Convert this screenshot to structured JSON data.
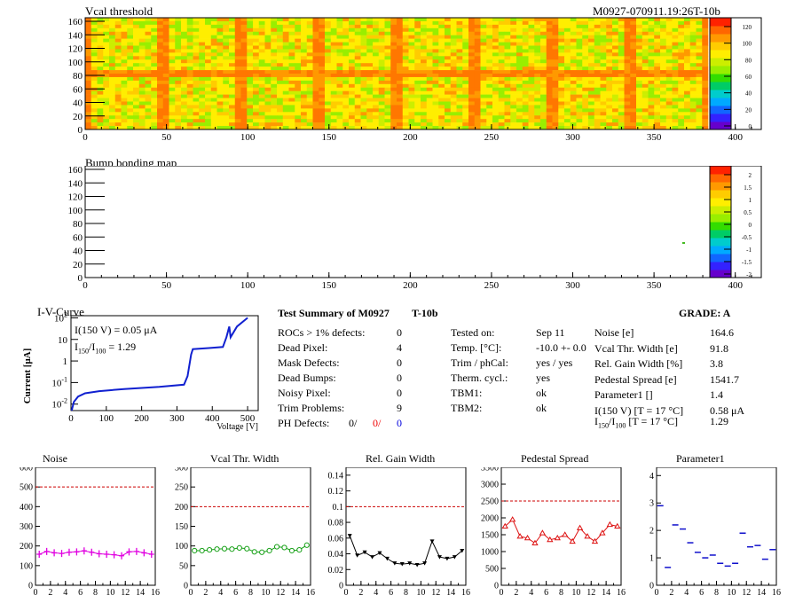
{
  "colors": {
    "noise": "#e000e0",
    "vcal_width": "#16a016",
    "gain_width": "#000000",
    "pedestal": "#dd1010",
    "parameter1": "#1010cc",
    "iv_curve": "#1020d0",
    "defect_red": "#ee0000",
    "defect_blue": "#0000dd",
    "threshold_line": "#cc0000"
  },
  "header": {
    "module_id": "M0927-070911.19:26T-10b"
  },
  "heatmaps": [
    {
      "title": "Vcal threshold",
      "x_ticks": [
        "0",
        "50",
        "100",
        "150",
        "200",
        "250",
        "300",
        "350",
        "400"
      ],
      "y_ticks": [
        "0",
        "20",
        "40",
        "60",
        "80",
        "100",
        "120",
        "140",
        "160"
      ],
      "palette_ticks": [
        "120",
        "100",
        "80",
        "60",
        "40",
        "20",
        "0"
      ]
    },
    {
      "title": "Bump bonding map",
      "x_ticks": [
        "0",
        "50",
        "100",
        "150",
        "200",
        "250",
        "300",
        "350",
        "400"
      ],
      "y_ticks": [
        "0",
        "20",
        "40",
        "60",
        "80",
        "100",
        "120",
        "140",
        "160"
      ],
      "palette_ticks": [
        "2",
        "1.5",
        "1",
        "0.5",
        "0",
        "-0.5",
        "-1",
        "-1.5",
        "-2"
      ]
    }
  ],
  "iv": {
    "title": "I-V-Curve",
    "ylabel": "Current [μA]",
    "xlabel": "Voltage [V]",
    "i150": "I(150 V) = 0.05 μA",
    "ratio_label": "I",
    "ratio_sub1": "150",
    "ratio_sep": "/I",
    "ratio_sub2": "100",
    "ratio_val": "=  1.29",
    "x_ticks": [
      "0",
      "100",
      "200",
      "300",
      "400",
      "500"
    ],
    "y_ticks": [
      {
        "base": "10",
        "exp": "-2"
      },
      {
        "base": "10",
        "exp": "-1"
      },
      {
        "base": "1",
        "exp": ""
      },
      {
        "base": "10",
        "exp": ""
      },
      {
        "base": "10",
        "exp": "2"
      }
    ]
  },
  "summary": {
    "title": "Test Summary of M0927",
    "subtitle": "T-10b",
    "grade": "GRADE:  A",
    "rows": [
      {
        "label": "ROCs > 1% defects:",
        "value": "0"
      },
      {
        "label": "Dead Pixel:",
        "value": "4"
      },
      {
        "label": "Mask Defects:",
        "value": "0"
      },
      {
        "label": "Dead Bumps:",
        "value": "0"
      },
      {
        "label": "Noisy Pixel:",
        "value": "0"
      },
      {
        "label": "Trim Problems:",
        "value": "9"
      }
    ],
    "ph_defects": {
      "label": "PH Defects:",
      "v1": "0/",
      "v2": "0/",
      "v3": "0"
    },
    "mid_rows": [
      {
        "label": "Tested on:",
        "value": "Sep 11"
      },
      {
        "label": "Temp. [°C]:",
        "value": "-10.0 +- 0.0"
      },
      {
        "label": "Trim / phCal:",
        "value": "yes / yes"
      },
      {
        "label": "Therm. cycl.:",
        "value": "yes"
      },
      {
        "label": "TBM1:",
        "value": "ok"
      },
      {
        "label": "TBM2:",
        "value": "ok"
      }
    ],
    "right_rows": [
      {
        "label": "Noise [e]",
        "value": "164.6"
      },
      {
        "label": "Vcal Thr. Width [e]",
        "value": "91.8"
      },
      {
        "label": "Rel. Gain Width [%]",
        "value": "3.8"
      },
      {
        "label": "Pedestal Spread [e]",
        "value": "1541.7"
      },
      {
        "label": "Parameter1 []",
        "value": "1.4"
      },
      {
        "label": "I(150 V) [T = 17 °C]",
        "value": "0.58 μA"
      }
    ],
    "ratio_row": {
      "label_pre": "I",
      "sub1": "150",
      "mid": "/I",
      "sub2": "100",
      "label_post": "  [T = 17 °C]",
      "value": "1.29"
    }
  },
  "chart_data": [
    {
      "type": "line",
      "title": "Noise",
      "x": [
        0,
        1,
        2,
        3,
        4,
        5,
        6,
        7,
        8,
        9,
        10,
        11,
        12,
        13,
        14,
        15
      ],
      "values": [
        158,
        172,
        165,
        162,
        168,
        170,
        175,
        168,
        160,
        158,
        155,
        150,
        170,
        172,
        165,
        158
      ],
      "ylim": [
        0,
        600
      ],
      "y_ticks": [
        "0",
        "100",
        "200",
        "300",
        "400",
        "500",
        "600"
      ],
      "threshold": 500,
      "marker": "cross",
      "xlim": [
        0,
        16
      ],
      "x_ticks": [
        "0",
        "2",
        "4",
        "6",
        "8",
        "10",
        "12",
        "14",
        "16"
      ]
    },
    {
      "type": "line",
      "title": "Vcal Thr. Width",
      "x": [
        0,
        1,
        2,
        3,
        4,
        5,
        6,
        7,
        8,
        9,
        10,
        11,
        12,
        13,
        14,
        15
      ],
      "values": [
        88,
        88,
        90,
        92,
        93,
        92,
        95,
        93,
        85,
        84,
        88,
        98,
        96,
        88,
        90,
        102
      ],
      "ylim": [
        0,
        300
      ],
      "y_ticks": [
        "0",
        "50",
        "100",
        "150",
        "200",
        "250",
        "300"
      ],
      "threshold": 200,
      "marker": "circle",
      "xlim": [
        0,
        16
      ],
      "x_ticks": [
        "0",
        "2",
        "4",
        "6",
        "8",
        "10",
        "12",
        "14",
        "16"
      ]
    },
    {
      "type": "line",
      "title": "Rel. Gain Width",
      "x": [
        0,
        1,
        2,
        3,
        4,
        5,
        6,
        7,
        8,
        9,
        10,
        11,
        12,
        13,
        14,
        15
      ],
      "values": [
        0.063,
        0.038,
        0.042,
        0.036,
        0.041,
        0.034,
        0.028,
        0.027,
        0.028,
        0.026,
        0.028,
        0.056,
        0.036,
        0.034,
        0.036,
        0.044
      ],
      "ylim": [
        0,
        0.15
      ],
      "y_ticks": [
        "0",
        "0.02",
        "0.04",
        "0.06",
        "0.08",
        "0.1",
        "0.12",
        "0.14"
      ],
      "threshold": 0.1,
      "marker": "triangle-down",
      "xlim": [
        0,
        16
      ],
      "x_ticks": [
        "0",
        "2",
        "4",
        "6",
        "8",
        "10",
        "12",
        "14",
        "16"
      ]
    },
    {
      "type": "line",
      "title": "Pedestal Spread",
      "x": [
        0,
        1,
        2,
        3,
        4,
        5,
        6,
        7,
        8,
        9,
        10,
        11,
        12,
        13,
        14,
        15
      ],
      "values": [
        1750,
        1950,
        1450,
        1400,
        1250,
        1550,
        1350,
        1400,
        1500,
        1300,
        1700,
        1450,
        1300,
        1550,
        1800,
        1750
      ],
      "ylim": [
        0,
        3500
      ],
      "y_ticks": [
        "0",
        "500",
        "1000",
        "1500",
        "2000",
        "2500",
        "3000",
        "3500"
      ],
      "threshold": 2500,
      "marker": "triangle-up",
      "xlim": [
        0,
        16
      ],
      "x_ticks": [
        "0",
        "2",
        "4",
        "6",
        "8",
        "10",
        "12",
        "14",
        "16"
      ]
    },
    {
      "type": "scatter",
      "title": "Parameter1",
      "x": [
        0,
        1,
        2,
        3,
        4,
        5,
        6,
        7,
        8,
        9,
        10,
        11,
        12,
        13,
        14,
        15
      ],
      "values": [
        2.9,
        0.65,
        2.2,
        2.05,
        1.55,
        1.2,
        1.0,
        1.1,
        0.8,
        0.7,
        0.8,
        1.9,
        1.4,
        1.45,
        0.95,
        1.3
      ],
      "ylim": [
        0,
        4.3
      ],
      "y_ticks": [
        "0",
        "1",
        "2",
        "3",
        "4"
      ],
      "marker": "hline",
      "xlim": [
        0,
        16
      ],
      "x_ticks": [
        "0",
        "2",
        "4",
        "6",
        "8",
        "10",
        "12",
        "14",
        "16"
      ]
    }
  ]
}
